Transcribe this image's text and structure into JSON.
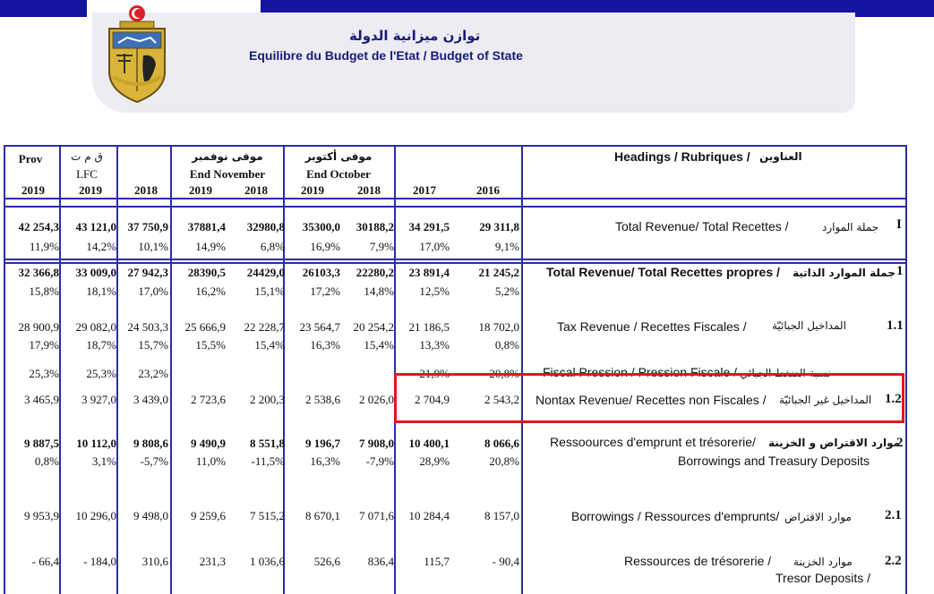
{
  "header": {
    "title_ar": "توازن ميزانية الدولة",
    "title_fr": "Equilibre du Budget de l'Etat / Budget of State"
  },
  "columns": {
    "prov_label": "Prov",
    "lfc_ar": "ق م ت",
    "lfc_label": "LFC",
    "nov_ar": "موفى نوفمبر",
    "nov_label": "End November",
    "oct_ar": "موفى أكتوبر",
    "oct_label": "End October",
    "headings_label": "Headings / Rubriques  /",
    "headings_ar": "العناوين",
    "years": [
      "2019",
      "2019",
      "2018",
      "2019",
      "2018",
      "2019",
      "2018",
      "2017",
      "2016"
    ]
  },
  "rows": [
    {
      "num": "I",
      "label": "Total Revenue/ Total Recettes  /",
      "label_ar": "جملة الموارد",
      "values": [
        "42 254,3",
        "43 121,0",
        "37 750,9",
        "37881,4",
        "32980,8",
        "35300,0",
        "30188,2",
        "34 291,5",
        "29 311,8"
      ],
      "pcts": [
        "11,9%",
        "14,2%",
        "10,1%",
        "14,9%",
        "6,8%",
        "16,9%",
        "7,9%",
        "17,0%",
        "9,1%"
      ]
    },
    {
      "num": "1",
      "label": "Total Revenue/ Total Recettes propres  /",
      "label_ar": "جملة الموارد الذاتية",
      "values": [
        "32 366,8",
        "33 009,0",
        "27 942,3",
        "28390,5",
        "24429,0",
        "26103,3",
        "22280,2",
        "23 891,4",
        "21 245,2"
      ],
      "pcts": [
        "15,8%",
        "18,1%",
        "17,0%",
        "16,2%",
        "15,1%",
        "17,2%",
        "14,8%",
        "12,5%",
        "5,2%"
      ]
    },
    {
      "num": "1.1",
      "label": "Tax Revenue   /  Recettes Fiscales  /",
      "label_ar": "المداخيل الجبائيّة",
      "values": [
        "28 900,9",
        "29 082,0",
        "24 503,3",
        "25 666,9",
        "22 228,7",
        "23 564,7",
        "20 254,2",
        "21 186,5",
        "18 702,0"
      ],
      "pcts": [
        "17,9%",
        "18,7%",
        "15,7%",
        "15,5%",
        "15,4%",
        "16,3%",
        "15,4%",
        "13,3%",
        "0,8%"
      ]
    },
    {
      "num": "",
      "label": "Fiscal Pression / Pression Fiscale /",
      "label_ar": "نسبة الضغط الجبائي",
      "pcts": [
        "25,3%",
        "25,3%",
        "23,2%",
        "",
        "",
        "",
        "",
        "21,9%",
        "20,8%"
      ]
    },
    {
      "num": "1.2",
      "label": "Nontax Revenue/ Recettes non Fiscales  /",
      "label_ar": "المداخيل غير الجبائيّة",
      "values": [
        "3 465,9",
        "3 927,0",
        "3 439,0",
        "2 723,6",
        "2 200,3",
        "2 538,6",
        "2 026,0",
        "2 704,9",
        "2 543,2"
      ]
    },
    {
      "num": "2",
      "label": "Ressoources d'emprunt et trésorerie/",
      "label_ar": "موارد الاقتراض و  الخزينة",
      "label2": "Borrowings and Treasury Deposits",
      "values": [
        "9 887,5",
        "10 112,0",
        "9 808,6",
        "9 490,9",
        "8 551,8",
        "9 196,7",
        "7 908,0",
        "10 400,1",
        "8 066,6"
      ],
      "pcts": [
        "0,8%",
        "3,1%",
        "-5,7%",
        "11,0%",
        "-11,5%",
        "16,3%",
        "-7,9%",
        "28,9%",
        "20,8%"
      ]
    },
    {
      "num": "2.1",
      "label": "Borrowings / Ressources d'emprunts/",
      "label_ar": "موارد الاقتراض",
      "values": [
        "9 953,9",
        "10 296,0",
        "9 498,0",
        "9 259,6",
        "7 515,2",
        "8 670,1",
        "7 071,6",
        "10 284,4",
        "8 157,0"
      ]
    },
    {
      "num": "2.2",
      "label": "Ressources de trésorerie    /",
      "label_ar": "موارد الخزينة",
      "label2": "Tresor Deposits /",
      "values": [
        "- 66,4",
        "- 184,0",
        "310,6",
        "231,3",
        "1 036,6",
        "526,6",
        "836,4",
        "115,7",
        "- 90,4"
      ]
    }
  ]
}
